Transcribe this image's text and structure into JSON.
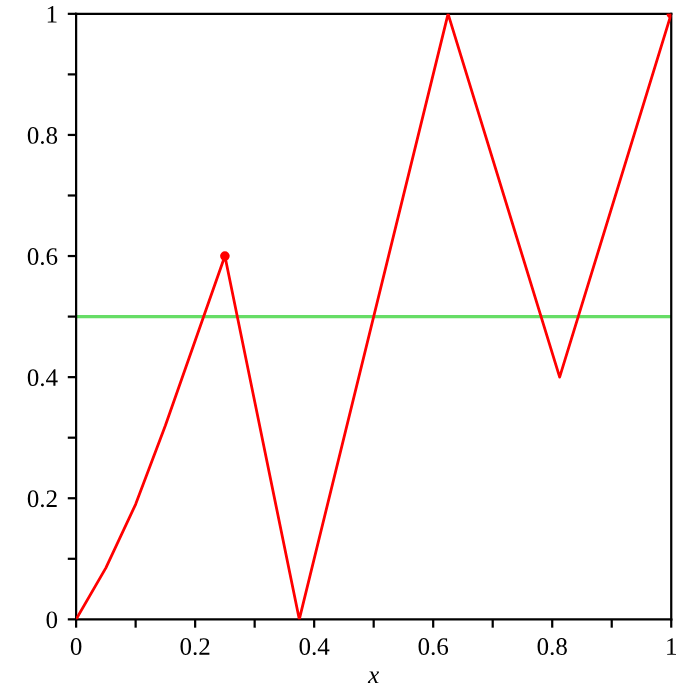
{
  "chart_data": {
    "type": "line",
    "xlabel": "x",
    "series": [
      {
        "color": "#ff0000",
        "x": [
          0,
          0.05,
          0.1,
          0.15,
          0.2,
          0.25,
          0.375,
          0.625,
          0.8125,
          1
        ],
        "values": [
          0,
          0.085,
          0.19,
          0.32,
          0.46,
          0.6,
          0,
          1,
          0.4,
          1
        ]
      },
      {
        "type": "scatter",
        "color": "#ff0000",
        "marker": "circle",
        "x": [
          0.25,
          1
        ],
        "values": [
          0.6,
          1
        ]
      }
    ],
    "ref_lines": [
      {
        "axis": "y",
        "value": 0.5,
        "color": "#66dd66"
      }
    ],
    "xlim": [
      0,
      1
    ],
    "ylim": [
      0,
      1
    ],
    "xticks": [
      0,
      {
        "value": 0.1,
        "label": null
      },
      0.2,
      {
        "value": 0.3,
        "label": null
      },
      0.4,
      {
        "value": 0.5,
        "label": null
      },
      0.6,
      {
        "value": 0.7,
        "label": null
      },
      0.8,
      {
        "value": 0.9,
        "label": null
      },
      1
    ],
    "yticks": [
      0,
      {
        "value": 0.1,
        "label": null
      },
      0.2,
      {
        "value": 0.3,
        "label": null
      },
      0.4,
      {
        "value": 0.5,
        "label": null
      },
      0.6,
      {
        "value": 0.7,
        "label": null
      },
      0.8,
      {
        "value": 0.9,
        "label": null
      },
      1
    ],
    "grid": false,
    "legend": false
  }
}
